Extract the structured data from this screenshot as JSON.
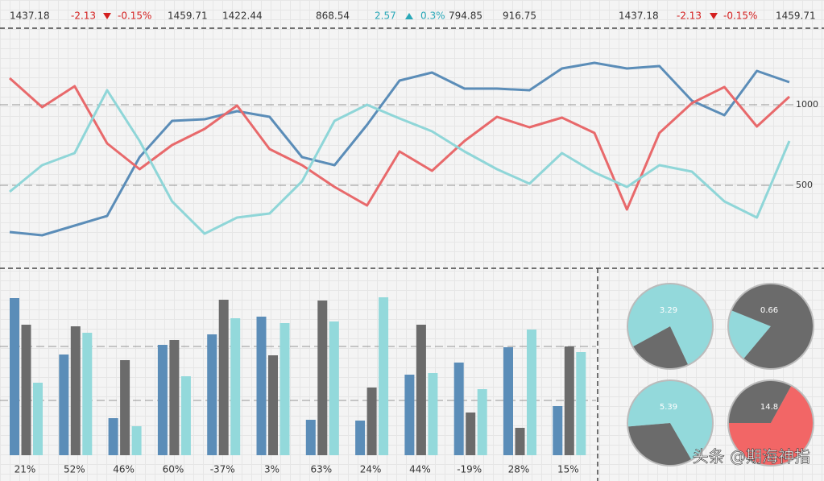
{
  "ticker": [
    {
      "text": "1437.18",
      "color": "#333333"
    },
    {
      "text": "-2.13",
      "color": "#d42020"
    },
    {
      "text": "-0.15%",
      "color": "#d42020"
    },
    {
      "text": "1459.71",
      "color": "#333333"
    },
    {
      "text": "1422.44",
      "color": "#333333"
    },
    {
      "text": "868.54",
      "color": "#333333"
    },
    {
      "text": "2.57",
      "color": "#2aa8b8"
    },
    {
      "text": "0.3%",
      "color": "#2aa8b8"
    },
    {
      "text": "794.85",
      "color": "#333333"
    },
    {
      "text": "916.75",
      "color": "#333333"
    },
    {
      "text": "1437.18",
      "color": "#333333"
    },
    {
      "text": "-2.13",
      "color": "#d42020"
    },
    {
      "text": "-0.15%",
      "color": "#d42020"
    },
    {
      "text": "1459.71",
      "color": "#333333"
    }
  ],
  "chart_data": [
    {
      "type": "line",
      "x": [
        0,
        1,
        2,
        3,
        4,
        5,
        6,
        7,
        8,
        9,
        10,
        11,
        12,
        13,
        14,
        15,
        16,
        17,
        18,
        19,
        20,
        21,
        22,
        23,
        24
      ],
      "xlim": [
        0,
        24
      ],
      "ylim": [
        0,
        1475
      ],
      "yticks": [
        500,
        1000
      ],
      "series": [
        {
          "color": "#5b8db8",
          "values": [
            210,
            190,
            250,
            310,
            675,
            900,
            910,
            960,
            925,
            675,
            625,
            875,
            1150,
            1200,
            1100,
            1100,
            1090,
            1225,
            1260,
            1225,
            1240,
            1025,
            935,
            1210,
            1140
          ]
        },
        {
          "color": "#e8696b",
          "values": [
            1165,
            985,
            1115,
            760,
            600,
            750,
            850,
            995,
            725,
            625,
            490,
            375,
            710,
            590,
            775,
            925,
            860,
            920,
            825,
            350,
            825,
            1010,
            1110,
            865,
            1050
          ]
        },
        {
          "color": "#8fd6d8",
          "values": [
            460,
            625,
            700,
            1090,
            775,
            400,
            200,
            300,
            325,
            525,
            900,
            1000,
            915,
            835,
            710,
            600,
            510,
            700,
            580,
            490,
            625,
            585,
            400,
            300,
            775
          ]
        }
      ]
    },
    {
      "type": "bar",
      "categories": [
        "21%",
        "52%",
        "46%",
        "60%",
        "-37%",
        "3%",
        "63%",
        "24%",
        "44%",
        "-19%",
        "28%",
        "15%"
      ],
      "ylim": [
        0,
        215
      ],
      "series": [
        {
          "color": "#5b8db8",
          "values": [
            195,
            125,
            46,
            137,
            150,
            172,
            44,
            43,
            100,
            115,
            134,
            61
          ]
        },
        {
          "color": "#6b6b6b",
          "values": [
            162,
            160,
            118,
            143,
            193,
            124,
            192,
            84,
            162,
            53,
            34,
            135
          ]
        },
        {
          "color": "#93d9db",
          "values": [
            90,
            152,
            36,
            98,
            170,
            164,
            166,
            196,
            102,
            82,
            156,
            128
          ]
        }
      ]
    },
    {
      "type": "pie",
      "label": 3.29,
      "values": [
        24,
        76
      ],
      "colors": [
        "#6b6b6b",
        "#93d9db"
      ]
    },
    {
      "type": "pie",
      "label": 0.66,
      "values": [
        20,
        80
      ],
      "colors": [
        "#93d9db",
        "#6b6b6b"
      ]
    },
    {
      "type": "pie",
      "label": 5.39,
      "values": [
        32,
        68
      ],
      "colors": [
        "#6b6b6b",
        "#93d9db"
      ]
    },
    {
      "type": "pie",
      "label": 14.8,
      "values": [
        33,
        67
      ],
      "colors": [
        "#6b6b6b",
        "#f26666"
      ]
    }
  ],
  "watermark": "头条 @期海神指"
}
